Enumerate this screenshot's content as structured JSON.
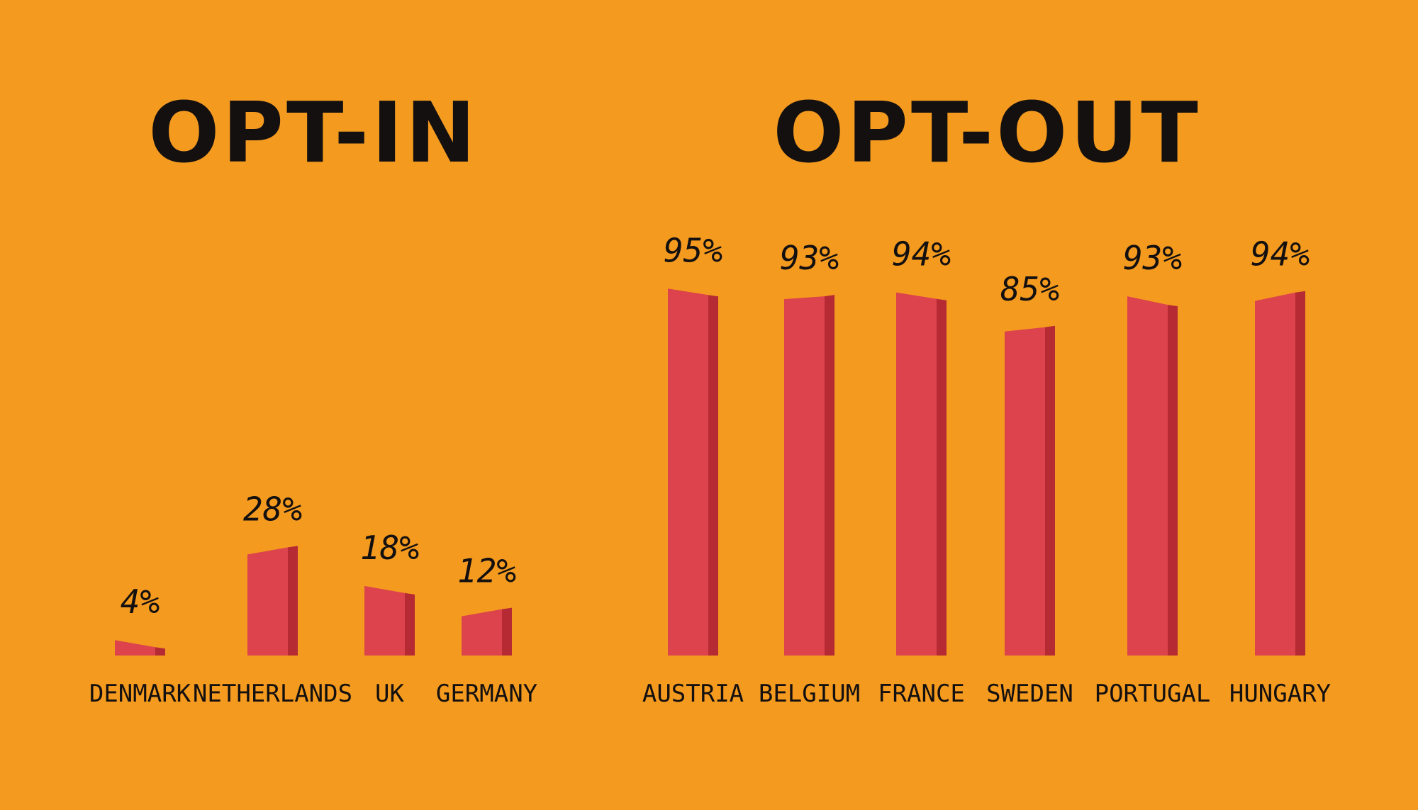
{
  "colors": {
    "background": "#F39A1F",
    "bar_front": "#DC434C",
    "bar_side": "#B62A33",
    "text": "#141010"
  },
  "chart_data": [
    {
      "type": "bar",
      "title": "OPT-IN",
      "categories": [
        "DENMARK",
        "NETHERLANDS",
        "UK",
        "GERMANY"
      ],
      "values": [
        4,
        28,
        18,
        12
      ],
      "value_labels": [
        "4%",
        "28%",
        "18%",
        "12%"
      ],
      "ylim": [
        0,
        100
      ],
      "grid": false,
      "legend": "none"
    },
    {
      "type": "bar",
      "title": "OPT-OUT",
      "categories": [
        "AUSTRIA",
        "BELGIUM",
        "FRANCE",
        "SWEDEN",
        "PORTUGAL",
        "HUNGARY"
      ],
      "values": [
        95,
        93,
        94,
        85,
        93,
        94
      ],
      "value_labels": [
        "95%",
        "93%",
        "94%",
        "85%",
        "93%",
        "94%"
      ],
      "ylim": [
        0,
        100
      ],
      "grid": false,
      "legend": "none"
    }
  ]
}
